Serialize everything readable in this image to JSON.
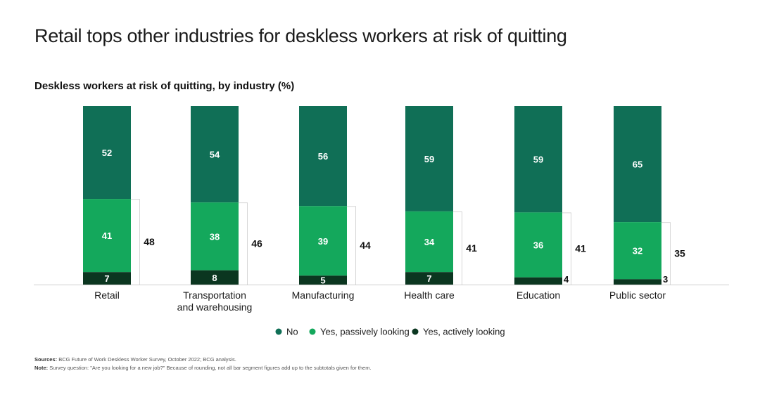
{
  "headline": "Retail tops other industries for deskless workers at risk of quitting",
  "colors": {
    "no": "#106f56",
    "passive": "#14a85c",
    "active": "#0b3620",
    "axis": "#cfcfcf",
    "bracket": "#d6d6d6"
  },
  "chart_data": {
    "type": "bar",
    "stacked": true,
    "title": "Deskless workers at risk of quitting, by industry (%)",
    "categories": [
      "Retail",
      "Transportation\nand warehousing",
      "Manufacturing",
      "Health care",
      "Education",
      "Public sector"
    ],
    "series": [
      {
        "name": "No",
        "values": [
          52,
          54,
          56,
          59,
          59,
          65
        ]
      },
      {
        "name": "Yes, passively looking",
        "values": [
          41,
          38,
          39,
          34,
          36,
          32
        ]
      },
      {
        "name": "Yes, actively looking",
        "values": [
          7,
          8,
          5,
          7,
          4,
          3
        ]
      }
    ],
    "subtotals": [
      48,
      46,
      44,
      41,
      41,
      35
    ],
    "ylim": [
      0,
      100
    ],
    "legend_position": "bottom-center",
    "grid": false
  },
  "footnotes": {
    "sources_label": "Sources:",
    "sources_text": "BCG Future of Work Deskless Worker Survey, October 2022; BCG analysis.",
    "note_label": "Note:",
    "note_text": "Survey question: \"Are you looking for a new job?\" Because of rounding, not all bar segment figures add up to the subtotals given for them."
  }
}
